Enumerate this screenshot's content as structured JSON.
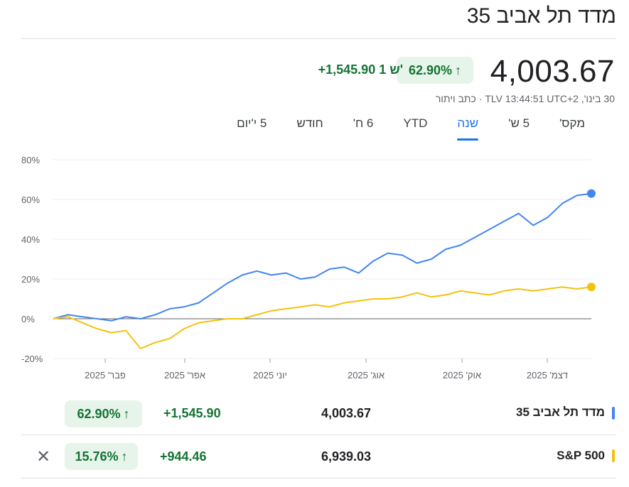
{
  "header": {
    "title": "מדד תל אביב 35"
  },
  "quote": {
    "price": "4,003.67",
    "pct_change": "62.90%",
    "abs_change": "+1,545.90 1 ש'",
    "meta": "30 בינו', TLV 13:44:51 UTC+2 · כתב ויתור"
  },
  "tabs": [
    {
      "label": "יום"
    },
    {
      "label": "5 י'"
    },
    {
      "label": "חודש"
    },
    {
      "label": "6 ח'"
    },
    {
      "label": "YTD"
    },
    {
      "label": "שנה"
    },
    {
      "label": "5 ש'"
    },
    {
      "label": "מקס'"
    }
  ],
  "active_tab": "שנה",
  "icons": {
    "up_arrow": "arrow-up-icon",
    "close": "close-icon"
  },
  "colors": {
    "blue": "#4285f4",
    "yellow": "#f4c20d",
    "green": "#137333",
    "green_bg": "#e6f4ea"
  },
  "chart_data": {
    "type": "line",
    "ylim": [
      -20,
      80
    ],
    "y_ticks": [
      "80%",
      "60%",
      "40%",
      "20%",
      "0%",
      "-20%"
    ],
    "x_ticks": [
      "פבר' 2025",
      "אפר' 2025",
      "יוני 2025",
      "אוג' 2025",
      "אוק' 2025",
      "דצמ' 2025"
    ],
    "series": [
      {
        "name": "מדד תל אביב 35",
        "color": "#4285f4",
        "values": [
          0,
          2,
          1,
          0,
          -1,
          1,
          0,
          2,
          5,
          6,
          8,
          13,
          18,
          22,
          24,
          22,
          23,
          20,
          21,
          25,
          26,
          23,
          29,
          33,
          32,
          28,
          30,
          35,
          37,
          41,
          45,
          49,
          53,
          47,
          51,
          58,
          62,
          63
        ]
      },
      {
        "name": "S&P 500",
        "color": "#f4c20d",
        "values": [
          0,
          1,
          -2,
          -5,
          -7,
          -6,
          -15,
          -12,
          -10,
          -5,
          -2,
          -1,
          0,
          0,
          2,
          4,
          5,
          6,
          7,
          6,
          8,
          9,
          10,
          10,
          11,
          13,
          11,
          12,
          14,
          13,
          12,
          14,
          15,
          14,
          15,
          16,
          15,
          16
        ]
      }
    ]
  },
  "table": {
    "rows": [
      {
        "name": "מדד תל אביב 35",
        "value": "4,003.67",
        "change": "+1,545.90",
        "pct": "62.90%"
      },
      {
        "name": "S&P 500",
        "value": "6,939.03",
        "change": "+944.46",
        "pct": "15.76%"
      }
    ]
  }
}
